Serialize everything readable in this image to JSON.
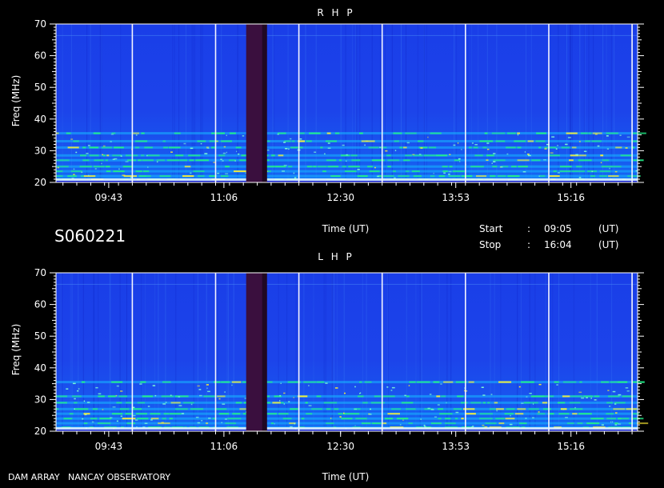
{
  "chart_data": [
    {
      "type": "heatmap",
      "title": "R H P",
      "xlabel": "Time (UT)",
      "ylabel": "Freq (MHz)",
      "ylim": [
        20,
        70
      ],
      "xlim": [
        "09:05",
        "16:04"
      ],
      "x_ticks": [
        "09:43",
        "11:06",
        "12:30",
        "13:53",
        "15:16"
      ],
      "y_ticks": [
        20,
        30,
        40,
        50,
        60,
        70
      ],
      "data_gap": [
        "11:22",
        "11:37"
      ],
      "colors": {
        "background": "#1f45e6",
        "low": "#0b17c8",
        "mid": "#18b8ff",
        "emission": "#22ee88",
        "peak": "#ffee33",
        "gap": "#3a0f3e"
      }
    },
    {
      "type": "heatmap",
      "title": "L H P",
      "xlabel": "Time (UT)",
      "ylabel": "Freq (MHz)",
      "ylim": [
        20,
        70
      ],
      "xlim": [
        "09:05",
        "16:04"
      ],
      "x_ticks": [
        "09:43",
        "11:06",
        "12:30",
        "13:53",
        "15:16"
      ],
      "y_ticks": [
        20,
        30,
        40,
        50,
        60,
        70
      ],
      "data_gap": [
        "11:22",
        "11:37"
      ],
      "colors": {
        "background": "#1f45e6",
        "low": "#0b17c8",
        "mid": "#18b8ff",
        "emission": "#22ee88",
        "peak": "#ffee33",
        "gap": "#3a0f3e"
      }
    }
  ],
  "info": {
    "station_id": "S060221",
    "start_label": "Start",
    "stop_label": "Stop",
    "sep": ":",
    "start_time": "09:05",
    "stop_time": "16:04",
    "unit": "(UT)",
    "footer": "DAM ARRAY   NANCAY OBSERVATORY"
  }
}
